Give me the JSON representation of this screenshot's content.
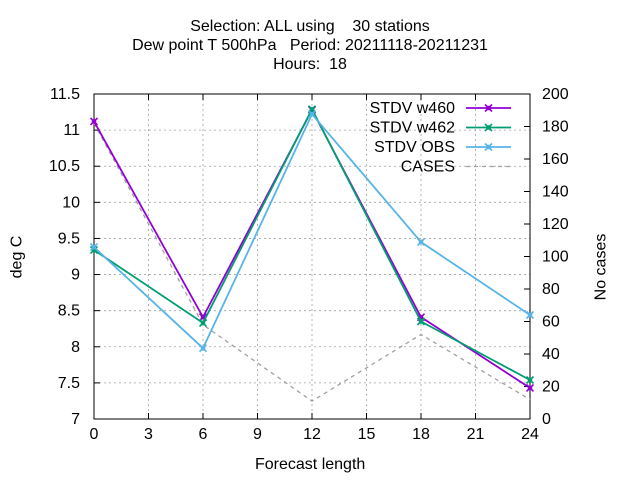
{
  "chart_data": {
    "type": "line",
    "title_lines": [
      "Selection: ALL using    30 stations",
      "Dew point T 500hPa   Period: 20211118-20211231",
      "Hours:  18"
    ],
    "xlabel": "Forecast length",
    "ylabel": "deg C",
    "y2label": "No cases",
    "x_ticks": [
      0,
      3,
      6,
      9,
      12,
      15,
      18,
      21,
      24
    ],
    "y_ticks": [
      "7",
      "7.5",
      "8",
      "8.5",
      "9",
      "9.5",
      "10",
      "10.5",
      "11",
      "11.5"
    ],
    "y2_ticks": [
      "0",
      "20",
      "40",
      "60",
      "80",
      "100",
      "120",
      "140",
      "160",
      "180",
      "200"
    ],
    "xlim": [
      0,
      24
    ],
    "ylim": [
      7,
      11.5
    ],
    "y2lim": [
      0,
      200
    ],
    "grid": true,
    "legend_position": "top-right",
    "x": [
      0,
      6,
      12,
      18,
      24
    ],
    "series": [
      {
        "name": "STDV w460",
        "axis": "y",
        "color": "#9400d3",
        "dash": "",
        "marker": "x",
        "values": [
          11.12,
          8.41,
          11.28,
          8.41,
          7.43
        ]
      },
      {
        "name": "STDV w462",
        "axis": "y",
        "color": "#009e73",
        "dash": "",
        "marker": "x",
        "values": [
          9.34,
          8.33,
          11.29,
          8.35,
          7.54
        ]
      },
      {
        "name": "STDV OBS",
        "axis": "y",
        "color": "#56b4e9",
        "dash": "",
        "marker": "x",
        "values": [
          9.38,
          7.98,
          11.22,
          9.45,
          8.44
        ]
      },
      {
        "name": "CASES",
        "axis": "y2",
        "color": "#a0a0a0",
        "dash": "4,4",
        "marker": "none",
        "values": [
          182,
          58,
          11,
          52,
          12
        ]
      }
    ]
  }
}
